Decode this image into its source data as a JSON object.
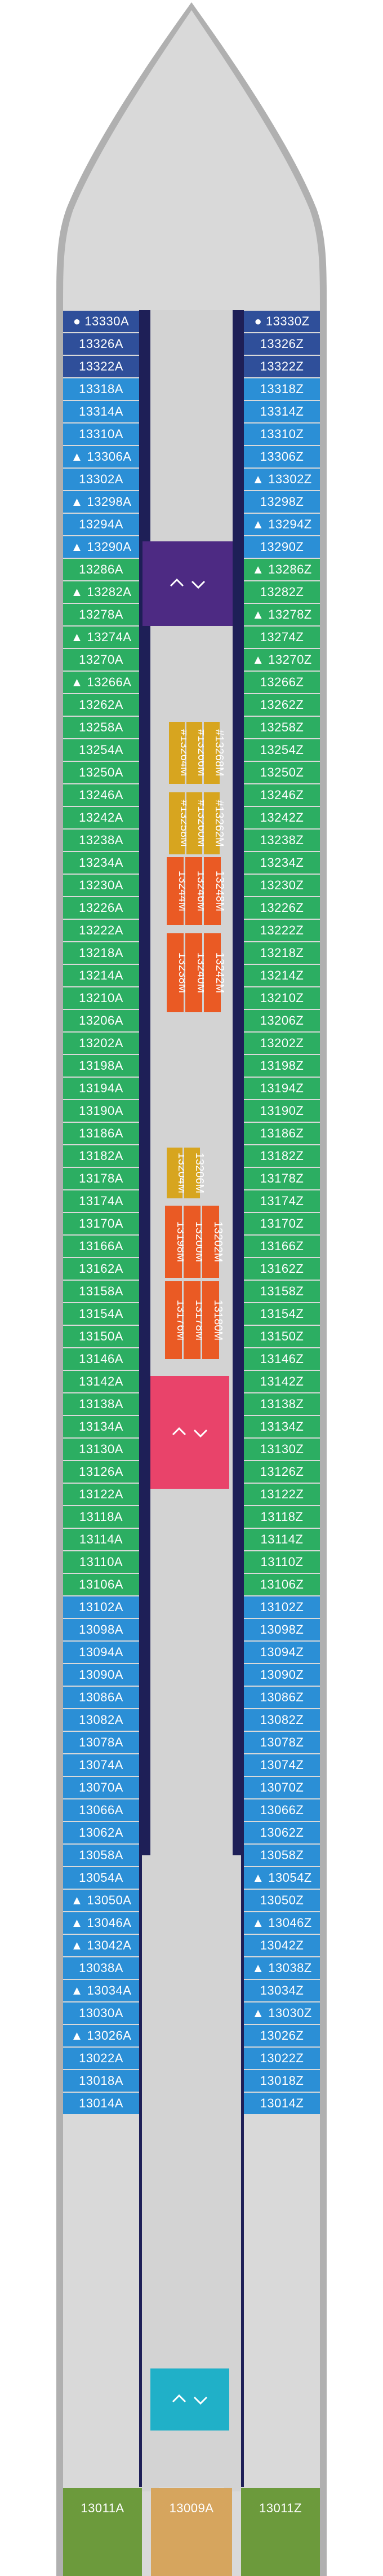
{
  "colors": {
    "navy": "#2f4f9a",
    "blue": "#2b8fd6",
    "green": "#2cae62",
    "olive": "#6c9a3c",
    "tan": "#d6a55e",
    "yellow": "#d7a51f",
    "orange": "#ea5a24",
    "purple": "#4d2a83",
    "pink": "#e9436a",
    "teal": "#20b0c8",
    "corridor": "#d3d3d3",
    "hull": "#b0b0b0",
    "frame": "#1e1f57"
  },
  "symbols": {
    "dot": "●",
    "triangle": "▲"
  },
  "elevator_icon": "elevator-icon",
  "port_cabins": [
    {
      "id": "13330A",
      "color": "navy",
      "mark": "dot"
    },
    {
      "id": "13326A",
      "color": "navy",
      "mark": ""
    },
    {
      "id": "13322A",
      "color": "navy",
      "mark": ""
    },
    {
      "id": "13318A",
      "color": "blue",
      "mark": ""
    },
    {
      "id": "13314A",
      "color": "blue",
      "mark": ""
    },
    {
      "id": "13310A",
      "color": "blue",
      "mark": ""
    },
    {
      "id": "13306A",
      "color": "blue",
      "mark": "triangle"
    },
    {
      "id": "13302A",
      "color": "blue",
      "mark": ""
    },
    {
      "id": "13298A",
      "color": "blue",
      "mark": "triangle"
    },
    {
      "id": "13294A",
      "color": "blue",
      "mark": ""
    },
    {
      "id": "13290A",
      "color": "blue",
      "mark": "triangle"
    },
    {
      "id": "13286A",
      "color": "green",
      "mark": ""
    },
    {
      "id": "13282A",
      "color": "green",
      "mark": "triangle"
    },
    {
      "id": "13278A",
      "color": "green",
      "mark": ""
    },
    {
      "id": "13274A",
      "color": "green",
      "mark": "triangle"
    },
    {
      "id": "13270A",
      "color": "green",
      "mark": ""
    },
    {
      "id": "13266A",
      "color": "green",
      "mark": "triangle"
    },
    {
      "id": "13262A",
      "color": "green",
      "mark": ""
    },
    {
      "id": "13258A",
      "color": "green",
      "mark": ""
    },
    {
      "id": "13254A",
      "color": "green",
      "mark": ""
    },
    {
      "id": "13250A",
      "color": "green",
      "mark": ""
    },
    {
      "id": "13246A",
      "color": "green",
      "mark": ""
    },
    {
      "id": "13242A",
      "color": "green",
      "mark": ""
    },
    {
      "id": "13238A",
      "color": "green",
      "mark": ""
    },
    {
      "id": "13234A",
      "color": "green",
      "mark": ""
    },
    {
      "id": "13230A",
      "color": "green",
      "mark": ""
    },
    {
      "id": "13226A",
      "color": "green",
      "mark": ""
    },
    {
      "id": "13222A",
      "color": "green",
      "mark": ""
    },
    {
      "id": "13218A",
      "color": "green",
      "mark": ""
    },
    {
      "id": "13214A",
      "color": "green",
      "mark": ""
    },
    {
      "id": "13210A",
      "color": "green",
      "mark": ""
    },
    {
      "id": "13206A",
      "color": "green",
      "mark": ""
    },
    {
      "id": "13202A",
      "color": "green",
      "mark": ""
    },
    {
      "id": "13198A",
      "color": "green",
      "mark": ""
    },
    {
      "id": "13194A",
      "color": "green",
      "mark": ""
    },
    {
      "id": "13190A",
      "color": "green",
      "mark": ""
    },
    {
      "id": "13186A",
      "color": "green",
      "mark": ""
    },
    {
      "id": "13182A",
      "color": "green",
      "mark": ""
    },
    {
      "id": "13178A",
      "color": "green",
      "mark": ""
    },
    {
      "id": "13174A",
      "color": "green",
      "mark": ""
    },
    {
      "id": "13170A",
      "color": "green",
      "mark": ""
    },
    {
      "id": "13166A",
      "color": "green",
      "mark": ""
    },
    {
      "id": "13162A",
      "color": "green",
      "mark": ""
    },
    {
      "id": "13158A",
      "color": "green",
      "mark": ""
    },
    {
      "id": "13154A",
      "color": "green",
      "mark": ""
    },
    {
      "id": "13150A",
      "color": "green",
      "mark": ""
    },
    {
      "id": "13146A",
      "color": "green",
      "mark": ""
    },
    {
      "id": "13142A",
      "color": "green",
      "mark": ""
    },
    {
      "id": "13138A",
      "color": "green",
      "mark": ""
    },
    {
      "id": "13134A",
      "color": "green",
      "mark": ""
    },
    {
      "id": "13130A",
      "color": "green",
      "mark": ""
    },
    {
      "id": "13126A",
      "color": "green",
      "mark": ""
    },
    {
      "id": "13122A",
      "color": "green",
      "mark": ""
    },
    {
      "id": "13118A",
      "color": "green",
      "mark": ""
    },
    {
      "id": "13114A",
      "color": "green",
      "mark": ""
    },
    {
      "id": "13110A",
      "color": "green",
      "mark": ""
    },
    {
      "id": "13106A",
      "color": "green",
      "mark": ""
    },
    {
      "id": "13102A",
      "color": "blue",
      "mark": ""
    },
    {
      "id": "13098A",
      "color": "blue",
      "mark": ""
    },
    {
      "id": "13094A",
      "color": "blue",
      "mark": ""
    },
    {
      "id": "13090A",
      "color": "blue",
      "mark": ""
    },
    {
      "id": "13086A",
      "color": "blue",
      "mark": ""
    },
    {
      "id": "13082A",
      "color": "blue",
      "mark": ""
    },
    {
      "id": "13078A",
      "color": "blue",
      "mark": ""
    },
    {
      "id": "13074A",
      "color": "blue",
      "mark": ""
    },
    {
      "id": "13070A",
      "color": "blue",
      "mark": ""
    },
    {
      "id": "13066A",
      "color": "blue",
      "mark": ""
    },
    {
      "id": "13062A",
      "color": "blue",
      "mark": ""
    },
    {
      "id": "13058A",
      "color": "blue",
      "mark": ""
    },
    {
      "id": "13054A",
      "color": "blue",
      "mark": ""
    },
    {
      "id": "13050A",
      "color": "blue",
      "mark": "triangle"
    },
    {
      "id": "13046A",
      "color": "blue",
      "mark": "triangle"
    },
    {
      "id": "13042A",
      "color": "blue",
      "mark": "triangle"
    },
    {
      "id": "13038A",
      "color": "blue",
      "mark": ""
    },
    {
      "id": "13034A",
      "color": "blue",
      "mark": "triangle"
    },
    {
      "id": "13030A",
      "color": "blue",
      "mark": ""
    },
    {
      "id": "13026A",
      "color": "blue",
      "mark": "triangle"
    },
    {
      "id": "13022A",
      "color": "blue",
      "mark": ""
    },
    {
      "id": "13018A",
      "color": "blue",
      "mark": ""
    },
    {
      "id": "13014A",
      "color": "blue",
      "mark": ""
    }
  ],
  "starboard_cabins": [
    {
      "id": "13330Z",
      "color": "navy",
      "mark": "dot"
    },
    {
      "id": "13326Z",
      "color": "navy",
      "mark": ""
    },
    {
      "id": "13322Z",
      "color": "navy",
      "mark": ""
    },
    {
      "id": "13318Z",
      "color": "blue",
      "mark": ""
    },
    {
      "id": "13314Z",
      "color": "blue",
      "mark": ""
    },
    {
      "id": "13310Z",
      "color": "blue",
      "mark": ""
    },
    {
      "id": "13306Z",
      "color": "blue",
      "mark": ""
    },
    {
      "id": "13302Z",
      "color": "blue",
      "mark": "triangle"
    },
    {
      "id": "13298Z",
      "color": "blue",
      "mark": ""
    },
    {
      "id": "13294Z",
      "color": "blue",
      "mark": "triangle"
    },
    {
      "id": "13290Z",
      "color": "blue",
      "mark": ""
    },
    {
      "id": "13286Z",
      "color": "green",
      "mark": "triangle"
    },
    {
      "id": "13282Z",
      "color": "green",
      "mark": ""
    },
    {
      "id": "13278Z",
      "color": "green",
      "mark": "triangle"
    },
    {
      "id": "13274Z",
      "color": "green",
      "mark": ""
    },
    {
      "id": "13270Z",
      "color": "green",
      "mark": "triangle"
    },
    {
      "id": "13266Z",
      "color": "green",
      "mark": ""
    },
    {
      "id": "13262Z",
      "color": "green",
      "mark": ""
    },
    {
      "id": "13258Z",
      "color": "green",
      "mark": ""
    },
    {
      "id": "13254Z",
      "color": "green",
      "mark": ""
    },
    {
      "id": "13250Z",
      "color": "green",
      "mark": ""
    },
    {
      "id": "13246Z",
      "color": "green",
      "mark": ""
    },
    {
      "id": "13242Z",
      "color": "green",
      "mark": ""
    },
    {
      "id": "13238Z",
      "color": "green",
      "mark": ""
    },
    {
      "id": "13234Z",
      "color": "green",
      "mark": ""
    },
    {
      "id": "13230Z",
      "color": "green",
      "mark": ""
    },
    {
      "id": "13226Z",
      "color": "green",
      "mark": ""
    },
    {
      "id": "13222Z",
      "color": "green",
      "mark": ""
    },
    {
      "id": "13218Z",
      "color": "green",
      "mark": ""
    },
    {
      "id": "13214Z",
      "color": "green",
      "mark": ""
    },
    {
      "id": "13210Z",
      "color": "green",
      "mark": ""
    },
    {
      "id": "13206Z",
      "color": "green",
      "mark": ""
    },
    {
      "id": "13202Z",
      "color": "green",
      "mark": ""
    },
    {
      "id": "13198Z",
      "color": "green",
      "mark": ""
    },
    {
      "id": "13194Z",
      "color": "green",
      "mark": ""
    },
    {
      "id": "13190Z",
      "color": "green",
      "mark": ""
    },
    {
      "id": "13186Z",
      "color": "green",
      "mark": ""
    },
    {
      "id": "13182Z",
      "color": "green",
      "mark": ""
    },
    {
      "id": "13178Z",
      "color": "green",
      "mark": ""
    },
    {
      "id": "13174Z",
      "color": "green",
      "mark": ""
    },
    {
      "id": "13170Z",
      "color": "green",
      "mark": ""
    },
    {
      "id": "13166Z",
      "color": "green",
      "mark": ""
    },
    {
      "id": "13162Z",
      "color": "green",
      "mark": ""
    },
    {
      "id": "13158Z",
      "color": "green",
      "mark": ""
    },
    {
      "id": "13154Z",
      "color": "green",
      "mark": ""
    },
    {
      "id": "13150Z",
      "color": "green",
      "mark": ""
    },
    {
      "id": "13146Z",
      "color": "green",
      "mark": ""
    },
    {
      "id": "13142Z",
      "color": "green",
      "mark": ""
    },
    {
      "id": "13138Z",
      "color": "green",
      "mark": ""
    },
    {
      "id": "13134Z",
      "color": "green",
      "mark": ""
    },
    {
      "id": "13130Z",
      "color": "green",
      "mark": ""
    },
    {
      "id": "13126Z",
      "color": "green",
      "mark": ""
    },
    {
      "id": "13122Z",
      "color": "green",
      "mark": ""
    },
    {
      "id": "13118Z",
      "color": "green",
      "mark": ""
    },
    {
      "id": "13114Z",
      "color": "green",
      "mark": ""
    },
    {
      "id": "13110Z",
      "color": "green",
      "mark": ""
    },
    {
      "id": "13106Z",
      "color": "green",
      "mark": ""
    },
    {
      "id": "13102Z",
      "color": "blue",
      "mark": ""
    },
    {
      "id": "13098Z",
      "color": "blue",
      "mark": ""
    },
    {
      "id": "13094Z",
      "color": "blue",
      "mark": ""
    },
    {
      "id": "13090Z",
      "color": "blue",
      "mark": ""
    },
    {
      "id": "13086Z",
      "color": "blue",
      "mark": ""
    },
    {
      "id": "13082Z",
      "color": "blue",
      "mark": ""
    },
    {
      "id": "13078Z",
      "color": "blue",
      "mark": ""
    },
    {
      "id": "13074Z",
      "color": "blue",
      "mark": ""
    },
    {
      "id": "13070Z",
      "color": "blue",
      "mark": ""
    },
    {
      "id": "13066Z",
      "color": "blue",
      "mark": ""
    },
    {
      "id": "13062Z",
      "color": "blue",
      "mark": ""
    },
    {
      "id": "13058Z",
      "color": "blue",
      "mark": ""
    },
    {
      "id": "13054Z",
      "color": "blue",
      "mark": "triangle"
    },
    {
      "id": "13050Z",
      "color": "blue",
      "mark": ""
    },
    {
      "id": "13046Z",
      "color": "blue",
      "mark": "triangle"
    },
    {
      "id": "13042Z",
      "color": "blue",
      "mark": ""
    },
    {
      "id": "13038Z",
      "color": "blue",
      "mark": "triangle"
    },
    {
      "id": "13034Z",
      "color": "blue",
      "mark": ""
    },
    {
      "id": "13030Z",
      "color": "blue",
      "mark": "triangle"
    },
    {
      "id": "13026Z",
      "color": "blue",
      "mark": ""
    },
    {
      "id": "13022Z",
      "color": "blue",
      "mark": ""
    },
    {
      "id": "13018Z",
      "color": "blue",
      "mark": ""
    },
    {
      "id": "13014Z",
      "color": "blue",
      "mark": ""
    }
  ],
  "center_cabins": [
    {
      "id": "13264M",
      "color": "yellow",
      "mark": "#"
    },
    {
      "id": "13266M",
      "color": "yellow",
      "mark": "#"
    },
    {
      "id": "13268M",
      "color": "yellow",
      "mark": "#"
    },
    {
      "id": "13258M",
      "color": "yellow",
      "mark": "#"
    },
    {
      "id": "13260M",
      "color": "yellow",
      "mark": "#"
    },
    {
      "id": "13262M",
      "color": "yellow",
      "mark": "#"
    },
    {
      "id": "13244M",
      "color": "orange",
      "mark": ""
    },
    {
      "id": "13246M",
      "color": "orange",
      "mark": ""
    },
    {
      "id": "13248M",
      "color": "orange",
      "mark": ""
    },
    {
      "id": "13238M",
      "color": "orange",
      "mark": ""
    },
    {
      "id": "13240M",
      "color": "orange",
      "mark": ""
    },
    {
      "id": "13242M",
      "color": "orange",
      "mark": ""
    },
    {
      "id": "13204M",
      "color": "yellow",
      "mark": ""
    },
    {
      "id": "13206M",
      "color": "yellow",
      "mark": ""
    },
    {
      "id": "13198M",
      "color": "orange",
      "mark": ""
    },
    {
      "id": "13200M",
      "color": "orange",
      "mark": ""
    },
    {
      "id": "13202M",
      "color": "orange",
      "mark": ""
    },
    {
      "id": "13176M",
      "color": "orange",
      "mark": ""
    },
    {
      "id": "13178M",
      "color": "orange",
      "mark": ""
    },
    {
      "id": "13180M",
      "color": "orange",
      "mark": ""
    }
  ],
  "bottom_cabins": [
    {
      "id": "13011A",
      "color": "olive"
    },
    {
      "id": "13009A",
      "color": "tan"
    },
    {
      "id": "13011Z",
      "color": "olive"
    }
  ]
}
